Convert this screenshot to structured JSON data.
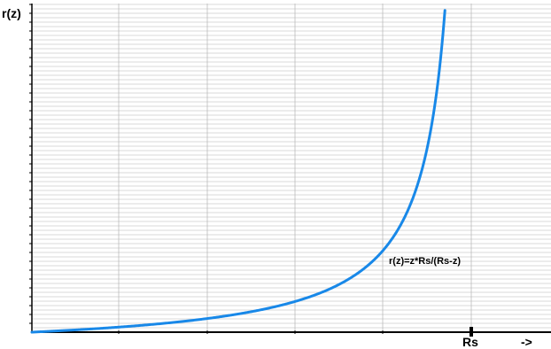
{
  "chart_data": {
    "type": "line",
    "title": "",
    "ylabel": "r(z)",
    "xlabel": "->",
    "x_ticks": [
      {
        "label": "Rs",
        "value": 1.0
      }
    ],
    "xlim": [
      0,
      1.0
    ],
    "ylim": [
      0,
      16
    ],
    "grid": "horizontal minor lines, vertical lines",
    "series": [
      {
        "name": "",
        "color": "#1888e8",
        "formula_Rs": 1.0,
        "x": [
          0,
          0.1,
          0.2,
          0.3,
          0.4,
          0.5,
          0.6,
          0.7,
          0.75,
          0.8,
          0.85,
          0.9,
          0.92,
          0.94
        ],
        "y": [
          0,
          0.111,
          0.25,
          0.429,
          0.667,
          1.0,
          1.5,
          2.333,
          3.0,
          4.0,
          5.667,
          9.0,
          11.5,
          15.67
        ]
      }
    ],
    "annotations": [
      {
        "text": "r(z)=z*Rs/(Rs-z)",
        "x": 0.82,
        "y": 3.5
      }
    ]
  }
}
